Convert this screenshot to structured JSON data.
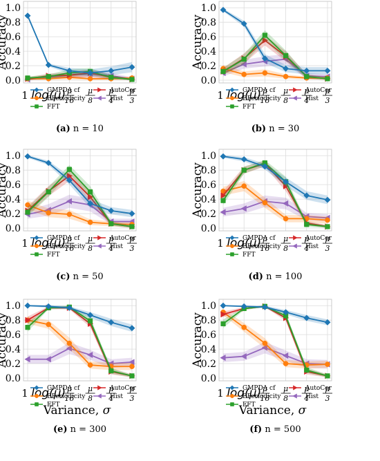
{
  "colors": {
    "GMPDA cf": "#1f77b4",
    "EPeriodicity": "#ff7f0e",
    "FFT": "#2ca02c",
    "AutoCor": "#d62728",
    "Hist": "#9467bd"
  },
  "legend_order": [
    "GMPDA cf",
    "AutoCor",
    "EPeriodicity",
    "Hist",
    "FFT"
  ],
  "series_markers": {
    "GMPDA cf": "diamond",
    "EPeriodicity": "circle",
    "FFT": "square",
    "AutoCor": "triangle-right",
    "Hist": "triangle-left"
  },
  "chart_data": [
    {
      "type": "line",
      "caption_label": "(a)",
      "caption_text": " n = 10",
      "ylabel": "Accuracy",
      "xlabel": "",
      "ylim": [
        0,
        1.05
      ],
      "yticks": [
        "0.0",
        "0.2",
        "0.4",
        "0.6",
        "0.8",
        "1.0"
      ],
      "x_ticks": [
        "1",
        "log(μ)",
        "μ/16",
        "μ/8",
        "μ/4",
        "μ/3"
      ],
      "legend_position": "lower-center",
      "grid": true,
      "series": [
        {
          "name": "GMPDA cf",
          "values": [
            0.89,
            0.21,
            0.13,
            0.1,
            0.13,
            0.18
          ],
          "band": [
            0.02,
            0.02,
            0.04,
            0.05,
            0.06,
            0.07
          ]
        },
        {
          "name": "EPeriodicity",
          "values": [
            0.02,
            0.02,
            0.04,
            0.02,
            0.02,
            0.03
          ],
          "band": [
            0.02,
            0.02,
            0.03,
            0.02,
            0.02,
            0.02
          ]
        },
        {
          "name": "FFT",
          "values": [
            0.03,
            0.05,
            0.1,
            0.12,
            0.04,
            0.01
          ],
          "band": [
            0.02,
            0.03,
            0.05,
            0.05,
            0.03,
            0.01
          ]
        },
        {
          "name": "AutoCor",
          "values": [
            0.02,
            0.06,
            0.07,
            0.1,
            0.04,
            0.01
          ],
          "band": [
            0.02,
            0.03,
            0.04,
            0.05,
            0.03,
            0.01
          ]
        },
        {
          "name": "Hist",
          "values": [
            0.01,
            0.04,
            0.07,
            0.09,
            0.06,
            0.02
          ],
          "band": [
            0.01,
            0.03,
            0.04,
            0.05,
            0.04,
            0.02
          ]
        }
      ]
    },
    {
      "type": "line",
      "caption_label": "(b)",
      "caption_text": " n = 30",
      "ylabel": "Accuracy",
      "xlabel": "",
      "ylim": [
        0,
        1.05
      ],
      "yticks": [
        "0.0",
        "0.2",
        "0.4",
        "0.6",
        "0.8",
        "1.0"
      ],
      "x_ticks": [
        "1",
        "log(μ)",
        "μ/16",
        "μ/8",
        "μ/4",
        "μ/3"
      ],
      "legend_position": "lower-center",
      "grid": true,
      "series": [
        {
          "name": "GMPDA cf",
          "values": [
            0.97,
            0.78,
            0.3,
            0.16,
            0.13,
            0.13
          ],
          "band": [
            0.02,
            0.04,
            0.06,
            0.05,
            0.05,
            0.05
          ]
        },
        {
          "name": "EPeriodicity",
          "values": [
            0.16,
            0.08,
            0.1,
            0.05,
            0.03,
            0.03
          ],
          "band": [
            0.05,
            0.04,
            0.05,
            0.03,
            0.02,
            0.02
          ]
        },
        {
          "name": "FFT",
          "values": [
            0.12,
            0.29,
            0.62,
            0.34,
            0.05,
            0.02
          ],
          "band": [
            0.05,
            0.07,
            0.07,
            0.07,
            0.03,
            0.02
          ]
        },
        {
          "name": "AutoCor",
          "values": [
            0.12,
            0.3,
            0.55,
            0.33,
            0.05,
            0.02
          ],
          "band": [
            0.05,
            0.07,
            0.07,
            0.07,
            0.03,
            0.02
          ]
        },
        {
          "name": "Hist",
          "values": [
            0.1,
            0.22,
            0.26,
            0.29,
            0.06,
            0.05
          ],
          "band": [
            0.05,
            0.06,
            0.07,
            0.07,
            0.04,
            0.03
          ]
        }
      ]
    },
    {
      "type": "line",
      "caption_label": "(c)",
      "caption_text": " n = 50",
      "ylabel": "Accuracy",
      "xlabel": "",
      "ylim": [
        0,
        1.05
      ],
      "yticks": [
        "0.0",
        "0.2",
        "0.4",
        "0.6",
        "0.8",
        "1.0"
      ],
      "x_ticks": [
        "1",
        "log(μ)",
        "μ/16",
        "μ/8",
        "μ/4",
        "μ/3"
      ],
      "legend_position": "lower-center",
      "grid": true,
      "series": [
        {
          "name": "GMPDA cf",
          "values": [
            0.99,
            0.9,
            0.66,
            0.34,
            0.24,
            0.2
          ],
          "band": [
            0.02,
            0.03,
            0.06,
            0.06,
            0.05,
            0.05
          ]
        },
        {
          "name": "EPeriodicity",
          "values": [
            0.32,
            0.21,
            0.19,
            0.08,
            0.06,
            0.05
          ],
          "band": [
            0.06,
            0.06,
            0.06,
            0.04,
            0.03,
            0.03
          ]
        },
        {
          "name": "FFT",
          "values": [
            0.22,
            0.5,
            0.81,
            0.5,
            0.06,
            0.02
          ],
          "band": [
            0.06,
            0.07,
            0.06,
            0.08,
            0.03,
            0.02
          ]
        },
        {
          "name": "AutoCor",
          "values": [
            0.24,
            0.51,
            0.72,
            0.43,
            0.06,
            0.02
          ],
          "band": [
            0.06,
            0.07,
            0.07,
            0.08,
            0.03,
            0.02
          ]
        },
        {
          "name": "Hist",
          "values": [
            0.19,
            0.25,
            0.37,
            0.32,
            0.09,
            0.09
          ],
          "band": [
            0.06,
            0.08,
            0.09,
            0.09,
            0.04,
            0.04
          ]
        }
      ]
    },
    {
      "type": "line",
      "caption_label": "(d)",
      "caption_text": " n = 100",
      "ylabel": "Accuracy",
      "xlabel": "",
      "ylim": [
        0,
        1.05
      ],
      "yticks": [
        "0.0",
        "0.2",
        "0.4",
        "0.6",
        "0.8",
        "1.0"
      ],
      "x_ticks": [
        "1",
        "log(μ)",
        "μ/16",
        "μ/8",
        "μ/4",
        "μ/3"
      ],
      "legend_position": "lower-center",
      "grid": true,
      "series": [
        {
          "name": "GMPDA cf",
          "values": [
            0.99,
            0.95,
            0.85,
            0.64,
            0.45,
            0.39
          ],
          "band": [
            0.02,
            0.03,
            0.04,
            0.06,
            0.06,
            0.06
          ]
        },
        {
          "name": "EPeriodicity",
          "values": [
            0.51,
            0.58,
            0.35,
            0.13,
            0.13,
            0.11
          ],
          "band": [
            0.06,
            0.07,
            0.07,
            0.05,
            0.05,
            0.05
          ]
        },
        {
          "name": "FFT",
          "values": [
            0.38,
            0.8,
            0.9,
            0.64,
            0.05,
            0.02
          ],
          "band": [
            0.06,
            0.05,
            0.04,
            0.07,
            0.03,
            0.02
          ]
        },
        {
          "name": "AutoCor",
          "values": [
            0.45,
            0.8,
            0.89,
            0.58,
            0.07,
            0.02
          ],
          "band": [
            0.06,
            0.05,
            0.04,
            0.07,
            0.03,
            0.02
          ]
        },
        {
          "name": "Hist",
          "values": [
            0.22,
            0.27,
            0.37,
            0.34,
            0.16,
            0.14
          ],
          "band": [
            0.06,
            0.07,
            0.08,
            0.08,
            0.05,
            0.05
          ]
        }
      ]
    },
    {
      "type": "line",
      "caption_label": "(e)",
      "caption_text": " n = 300",
      "ylabel": "Accuracy",
      "xlabel": "Variance, σ",
      "ylim": [
        0,
        1.05
      ],
      "yticks": [
        "0.0",
        "0.2",
        "0.4",
        "0.6",
        "0.8",
        "1.0"
      ],
      "x_ticks": [
        "1",
        "log(μ)",
        "μ/16",
        "μ/8",
        "μ/4",
        "μ/3"
      ],
      "legend_position": "lower-center",
      "grid": true,
      "series": [
        {
          "name": "GMPDA cf",
          "values": [
            1.0,
            0.99,
            0.97,
            0.87,
            0.77,
            0.69
          ],
          "band": [
            0.01,
            0.02,
            0.02,
            0.04,
            0.05,
            0.05
          ]
        },
        {
          "name": "EPeriodicity",
          "values": [
            0.8,
            0.74,
            0.48,
            0.18,
            0.16,
            0.16
          ],
          "band": [
            0.05,
            0.06,
            0.08,
            0.05,
            0.05,
            0.05
          ]
        },
        {
          "name": "FFT",
          "values": [
            0.7,
            0.97,
            0.98,
            0.79,
            0.1,
            0.03
          ],
          "band": [
            0.06,
            0.02,
            0.02,
            0.05,
            0.04,
            0.02
          ]
        },
        {
          "name": "AutoCor",
          "values": [
            0.8,
            0.97,
            0.97,
            0.75,
            0.09,
            0.03
          ],
          "band": [
            0.05,
            0.02,
            0.02,
            0.05,
            0.04,
            0.02
          ]
        },
        {
          "name": "Hist",
          "values": [
            0.26,
            0.26,
            0.41,
            0.32,
            0.2,
            0.22
          ],
          "band": [
            0.06,
            0.06,
            0.08,
            0.07,
            0.06,
            0.06
          ]
        }
      ]
    },
    {
      "type": "line",
      "caption_label": "(f)",
      "caption_text": " n = 500",
      "ylabel": "Accuracy",
      "xlabel": "Variance, σ",
      "ylim": [
        0,
        1.05
      ],
      "yticks": [
        "0.0",
        "0.2",
        "0.4",
        "0.6",
        "0.8",
        "1.0"
      ],
      "x_ticks": [
        "1",
        "log(μ)",
        "μ/16",
        "μ/8",
        "μ/4",
        "μ/3"
      ],
      "legend_position": "lower-center",
      "grid": true,
      "series": [
        {
          "name": "GMPDA cf",
          "values": [
            1.0,
            0.99,
            0.98,
            0.91,
            0.83,
            0.77
          ],
          "band": [
            0.01,
            0.01,
            0.02,
            0.03,
            0.04,
            0.04
          ]
        },
        {
          "name": "EPeriodicity",
          "values": [
            0.91,
            0.7,
            0.48,
            0.2,
            0.18,
            0.19
          ],
          "band": [
            0.04,
            0.06,
            0.07,
            0.05,
            0.05,
            0.05
          ]
        },
        {
          "name": "FFT",
          "values": [
            0.75,
            0.96,
            0.99,
            0.86,
            0.11,
            0.03
          ],
          "band": [
            0.06,
            0.02,
            0.01,
            0.04,
            0.04,
            0.02
          ]
        },
        {
          "name": "AutoCor",
          "values": [
            0.88,
            0.96,
            0.99,
            0.83,
            0.09,
            0.03
          ],
          "band": [
            0.04,
            0.02,
            0.01,
            0.04,
            0.04,
            0.02
          ]
        },
        {
          "name": "Hist",
          "values": [
            0.28,
            0.3,
            0.42,
            0.31,
            0.2,
            0.19
          ],
          "band": [
            0.06,
            0.06,
            0.08,
            0.07,
            0.06,
            0.06
          ]
        }
      ]
    }
  ]
}
